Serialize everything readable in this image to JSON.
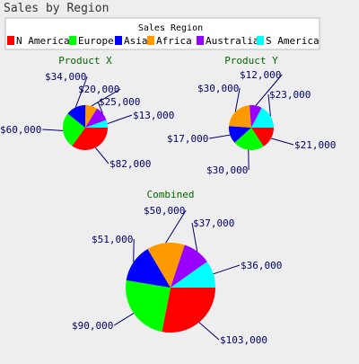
{
  "title": "Sales by Region",
  "legend": {
    "title": "Sales Region",
    "placement": "top-right"
  },
  "chart_data": [
    {
      "type": "pie",
      "title": "Product X",
      "categories": [
        "N America",
        "Europe",
        "Asia",
        "Africa",
        "Australia",
        "S America"
      ],
      "values": [
        82000,
        60000,
        34000,
        20000,
        25000,
        13000
      ],
      "labels": [
        "$82,000",
        "$60,000",
        "$34,000",
        "$20,000",
        "$25,000",
        "$13,000"
      ],
      "colors": [
        "#ff0000",
        "#00ff00",
        "#0000ff",
        "#ff9900",
        "#9900ff",
        "#00ffff"
      ]
    },
    {
      "type": "pie",
      "title": "Product Y",
      "categories": [
        "N America",
        "Europe",
        "Asia",
        "Africa",
        "Australia",
        "S America"
      ],
      "values": [
        21000,
        30000,
        17000,
        30000,
        12000,
        23000
      ],
      "labels": [
        "$21,000",
        "$30,000",
        "$17,000",
        "$30,000",
        "$12,000",
        "$23,000"
      ],
      "colors": [
        "#ff0000",
        "#00ff00",
        "#0000ff",
        "#ff9900",
        "#9900ff",
        "#00ffff"
      ]
    },
    {
      "type": "pie",
      "title": "Combined",
      "categories": [
        "N America",
        "Europe",
        "Asia",
        "Africa",
        "Australia",
        "S America"
      ],
      "values": [
        103000,
        90000,
        51000,
        50000,
        37000,
        36000
      ],
      "labels": [
        "$103,000",
        "$90,000",
        "$51,000",
        "$50,000",
        "$37,000",
        "$36,000"
      ],
      "colors": [
        "#ff0000",
        "#00ff00",
        "#0000ff",
        "#ff9900",
        "#9900ff",
        "#00ffff"
      ]
    }
  ]
}
